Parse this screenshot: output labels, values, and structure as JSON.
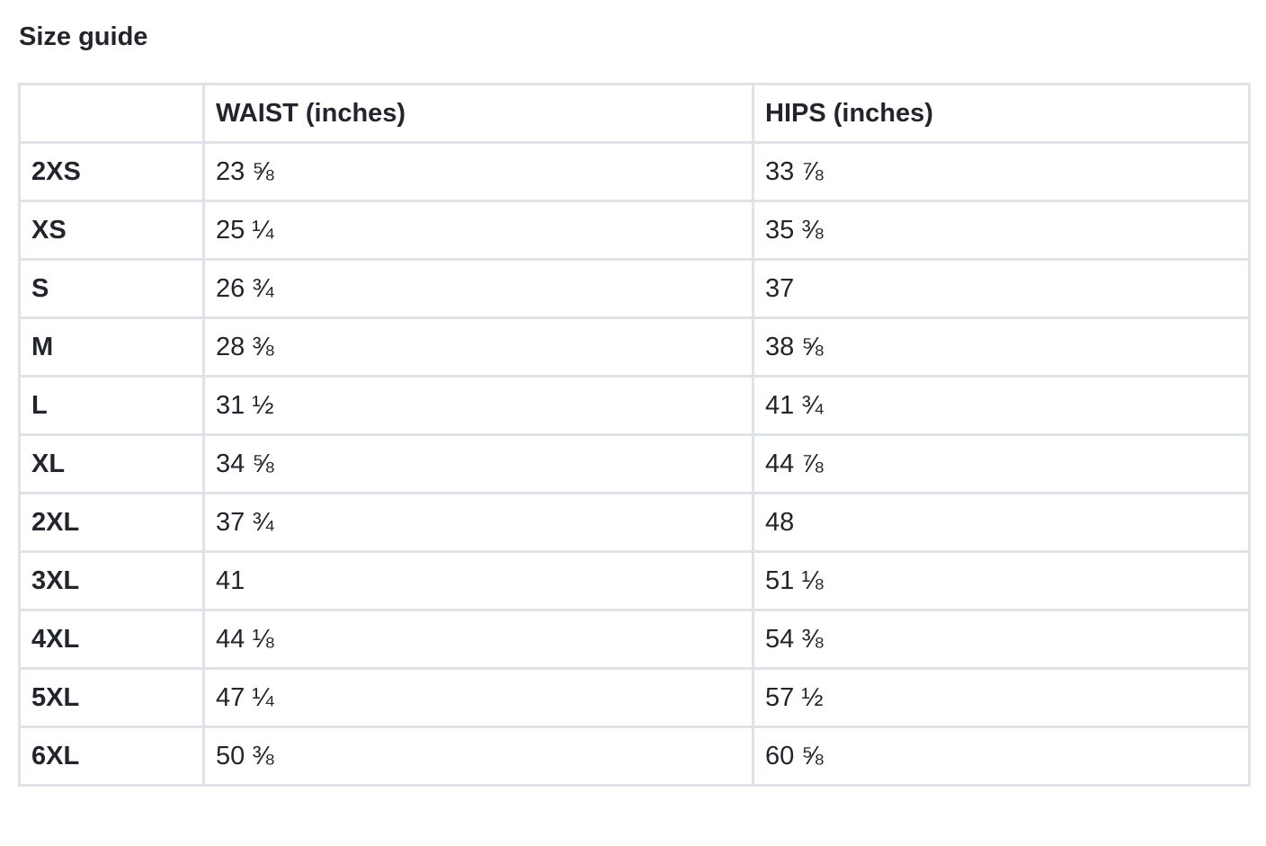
{
  "title": "Size guide",
  "table": {
    "headers": [
      "",
      "WAIST (inches)",
      "HIPS (inches)"
    ],
    "rows": [
      {
        "size": "2XS",
        "waist": "23 ⅝",
        "hips": "33 ⅞"
      },
      {
        "size": "XS",
        "waist": "25 ¼",
        "hips": "35 ⅜"
      },
      {
        "size": "S",
        "waist": "26 ¾",
        "hips": "37"
      },
      {
        "size": "M",
        "waist": "28 ⅜",
        "hips": "38 ⅝"
      },
      {
        "size": "L",
        "waist": "31 ½",
        "hips": "41 ¾"
      },
      {
        "size": "XL",
        "waist": "34 ⅝",
        "hips": "44 ⅞"
      },
      {
        "size": "2XL",
        "waist": "37 ¾",
        "hips": "48"
      },
      {
        "size": "3XL",
        "waist": "41",
        "hips": "51 ⅛"
      },
      {
        "size": "4XL",
        "waist": "44 ⅛",
        "hips": "54 ⅜"
      },
      {
        "size": "5XL",
        "waist": "47 ¼",
        "hips": "57 ½"
      },
      {
        "size": "6XL",
        "waist": "50 ⅜",
        "hips": "60 ⅝"
      }
    ]
  }
}
